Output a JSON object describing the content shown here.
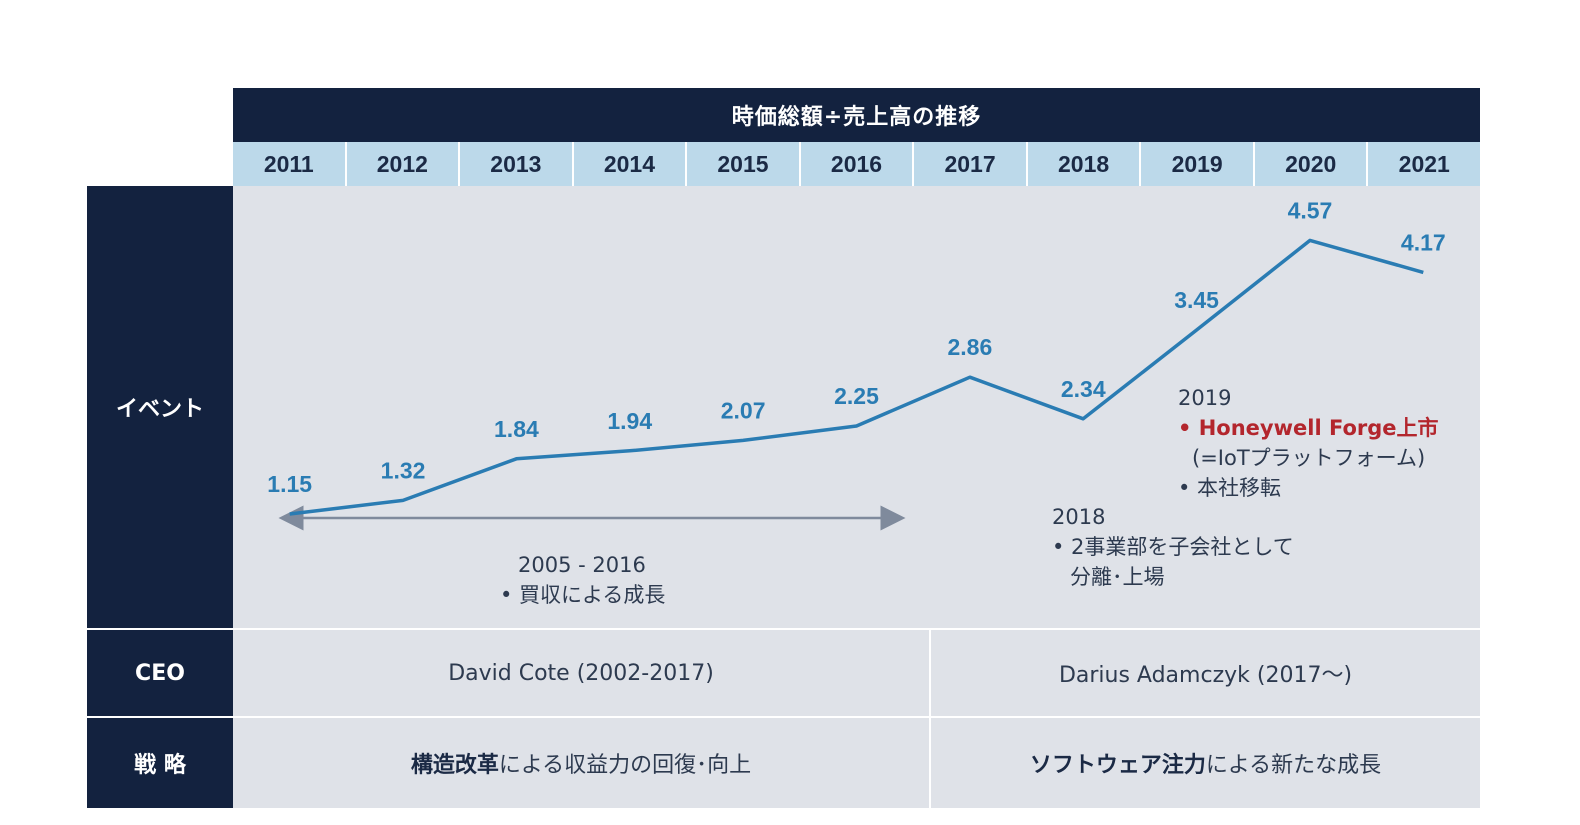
{
  "chart_data": {
    "type": "line",
    "title": "時価総額÷売上高の推移",
    "categories": [
      "2011",
      "2012",
      "2013",
      "2014",
      "2015",
      "2016",
      "2017",
      "2018",
      "2019",
      "2020",
      "2021"
    ],
    "series": [
      {
        "values": [
          1.15,
          1.32,
          1.84,
          1.94,
          2.07,
          2.25,
          2.86,
          2.34,
          3.45,
          4.57,
          4.17
        ]
      }
    ],
    "ylim": [
      0,
      5
    ],
    "line_color": "#2a7cb3"
  },
  "table": {
    "row_headers": {
      "event": "イベント",
      "ceo": "CEO",
      "strategy": "戦 略"
    },
    "ceo": {
      "left": "David Cote (2002-2017)",
      "right": "Darius Adamczyk (2017〜)"
    },
    "strategy": {
      "left_bold": "構造改革",
      "left_rest": "による収益力の回復･向上",
      "right_bold": "ソフトウェア注力",
      "right_rest": "による新たな成長"
    }
  },
  "annotations": {
    "acquisition": {
      "range": "2005 - 2016",
      "bullet": "• 買収による成長"
    },
    "event_2018": {
      "year": "2018",
      "line1": "• 2事業部を子会社として",
      "line2": "分離･上場"
    },
    "event_2019": {
      "year": "2019",
      "highlight": "• Honeywell Forge上市",
      "line2": "(=IoTプラットフォーム)",
      "line3": "• 本社移転"
    }
  },
  "colors": {
    "navy": "#13223f",
    "year_band": "#bcd9ea",
    "panel": "#dfe2e8",
    "line": "#2a7cb3",
    "highlight_red": "#b3262d",
    "arrow": "#7f8a9c"
  }
}
